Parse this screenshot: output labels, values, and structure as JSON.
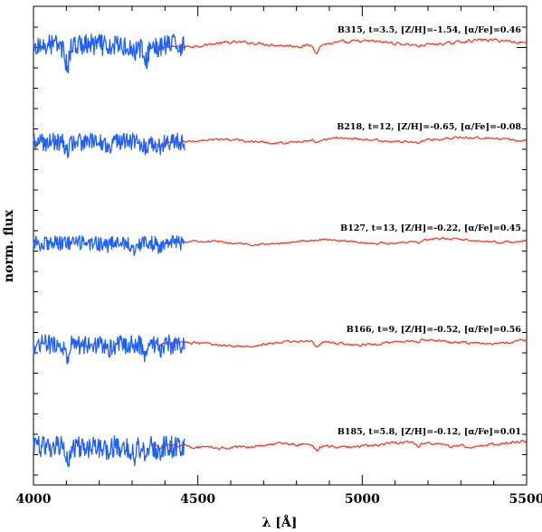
{
  "chart_data": {
    "type": "line",
    "xlabel": "λ [Å]",
    "ylabel": "norm. flux",
    "xlim": [
      4000,
      5500
    ],
    "x_ticks": [
      4000,
      4500,
      5000,
      5500
    ],
    "y_ticks_labeled": false,
    "grid": false,
    "colors": {
      "blue_segment": "#1f5fff",
      "red_segment": "#ff3a1a",
      "axes": "#000000"
    },
    "segment_ranges": {
      "blue": [
        4000,
        4460
      ],
      "red": [
        4370,
        5500
      ]
    },
    "spectra": [
      {
        "label": "B315, t=3.5, [Z/H]=-1.54, [α/Fe]=0.46",
        "offset": 4,
        "amplitude": 1.25,
        "absorption_lines": [
          [
            4102,
            0.34,
            7
          ],
          [
            4340,
            0.3,
            7
          ],
          [
            4861,
            0.22,
            7
          ],
          [
            4227,
            0.15,
            5
          ],
          [
            4305,
            0.14,
            6
          ],
          [
            4383,
            0.08,
            6
          ],
          [
            4958,
            0.05,
            6
          ],
          [
            5170,
            0.05,
            6
          ],
          [
            5270,
            0.04,
            6
          ]
        ]
      },
      {
        "label": "B218, t=12, [Z/H]=-0.65, [α/Fe]=-0.08",
        "offset": 3,
        "amplitude": 1.0,
        "absorption_lines": [
          [
            4102,
            0.2,
            6
          ],
          [
            4227,
            0.14,
            5
          ],
          [
            4340,
            0.14,
            6
          ],
          [
            4383,
            0.1,
            6
          ],
          [
            4861,
            0.12,
            6
          ],
          [
            5170,
            0.1,
            6
          ],
          [
            5270,
            0.06,
            5
          ],
          [
            5335,
            0.05,
            5
          ]
        ]
      },
      {
        "label": "B127, t=13, [Z/H]=-0.22, [α/Fe]=0.45",
        "offset": 2,
        "amplitude": 0.85,
        "absorption_lines": [
          [
            4305,
            0.12,
            6
          ],
          [
            4227,
            0.08,
            5
          ],
          [
            4383,
            0.07,
            6
          ],
          [
            5170,
            0.11,
            6
          ],
          [
            5270,
            0.06,
            5
          ],
          [
            5015,
            0.04,
            5
          ],
          [
            4861,
            0.05,
            5
          ]
        ]
      },
      {
        "label": "B166, t=9, [Z/H]=-0.52, [α/Fe]=0.56",
        "offset": 1,
        "amplitude": 1.1,
        "absorption_lines": [
          [
            4102,
            0.28,
            6
          ],
          [
            4227,
            0.15,
            5
          ],
          [
            4340,
            0.2,
            6
          ],
          [
            4383,
            0.08,
            6
          ],
          [
            4861,
            0.16,
            6
          ],
          [
            5170,
            0.09,
            6
          ],
          [
            5270,
            0.06,
            5
          ]
        ]
      },
      {
        "label": "B185, t=5.8, [Z/H]=-0.12, [α/Fe]=0.01",
        "offset": 0,
        "amplitude": 1.25,
        "absorption_lines": [
          [
            4102,
            0.25,
            6
          ],
          [
            4227,
            0.16,
            5
          ],
          [
            4305,
            0.16,
            6
          ],
          [
            4340,
            0.18,
            6
          ],
          [
            4383,
            0.1,
            6
          ],
          [
            4861,
            0.14,
            6
          ],
          [
            5170,
            0.12,
            6
          ],
          [
            5270,
            0.08,
            5
          ],
          [
            5335,
            0.05,
            5
          ]
        ]
      }
    ]
  }
}
